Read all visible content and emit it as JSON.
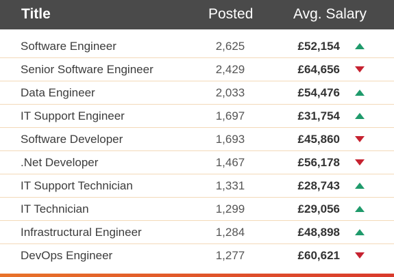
{
  "header": {
    "title": "Title",
    "posted": "Posted",
    "salary": "Avg. Salary"
  },
  "rows": [
    {
      "title": "Software Engineer",
      "posted": "2,625",
      "salary": "£52,154",
      "trend": "up"
    },
    {
      "title": "Senior Software Engineer",
      "posted": "2,429",
      "salary": "£64,656",
      "trend": "down"
    },
    {
      "title": "Data Engineer",
      "posted": "2,033",
      "salary": "£54,476",
      "trend": "up"
    },
    {
      "title": "IT Support Engineer",
      "posted": "1,697",
      "salary": "£31,754",
      "trend": "up"
    },
    {
      "title": "Software Developer",
      "posted": "1,693",
      "salary": "£45,860",
      "trend": "down"
    },
    {
      "title": ".Net Developer",
      "posted": "1,467",
      "salary": "£56,178",
      "trend": "down"
    },
    {
      "title": "IT Support Technician",
      "posted": "1,331",
      "salary": "£28,743",
      "trend": "up"
    },
    {
      "title": "IT Technician",
      "posted": "1,299",
      "salary": "£29,056",
      "trend": "up"
    },
    {
      "title": "Infrastructural Engineer",
      "posted": "1,284",
      "salary": "£48,898",
      "trend": "up"
    },
    {
      "title": "DevOps Engineer",
      "posted": "1,277",
      "salary": "£60,621",
      "trend": "down"
    }
  ],
  "colors": {
    "header_bg": "#4a4a4a",
    "up": "#1f9a6b",
    "down": "#c62230",
    "row_divider": "#f3d9b8",
    "bottom_bar_start": "#e8732a",
    "bottom_bar_end": "#d93a2b"
  }
}
